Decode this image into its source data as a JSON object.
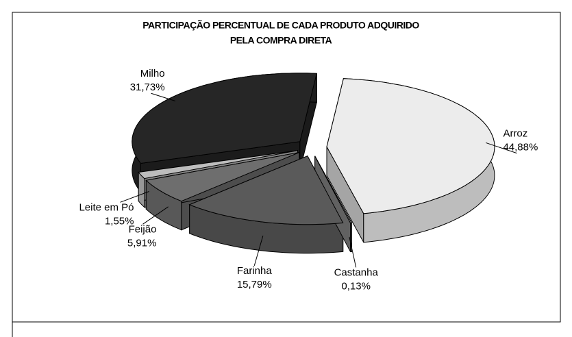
{
  "chart_data": {
    "type": "pie",
    "title": [
      "PARTICIPAÇÃO PERCENTUAL DE CADA PRODUTO ADQUIRIDO",
      "PELA COMPRA DIRETA"
    ],
    "categories": [
      "Arroz",
      "Castanha",
      "Farinha",
      "Feijão",
      "Leite em Pó",
      "Milho"
    ],
    "values": [
      44.88,
      0.13,
      15.79,
      5.91,
      1.55,
      31.73
    ],
    "value_labels": [
      "44,88%",
      "0,13%",
      "15,79%",
      "5,91%",
      "1,55%",
      "31,73%"
    ],
    "colors": [
      "#ececec",
      "#8a8a8a",
      "#5a5a5a",
      "#6e6e6e",
      "#bdbdbd",
      "#262626"
    ]
  }
}
